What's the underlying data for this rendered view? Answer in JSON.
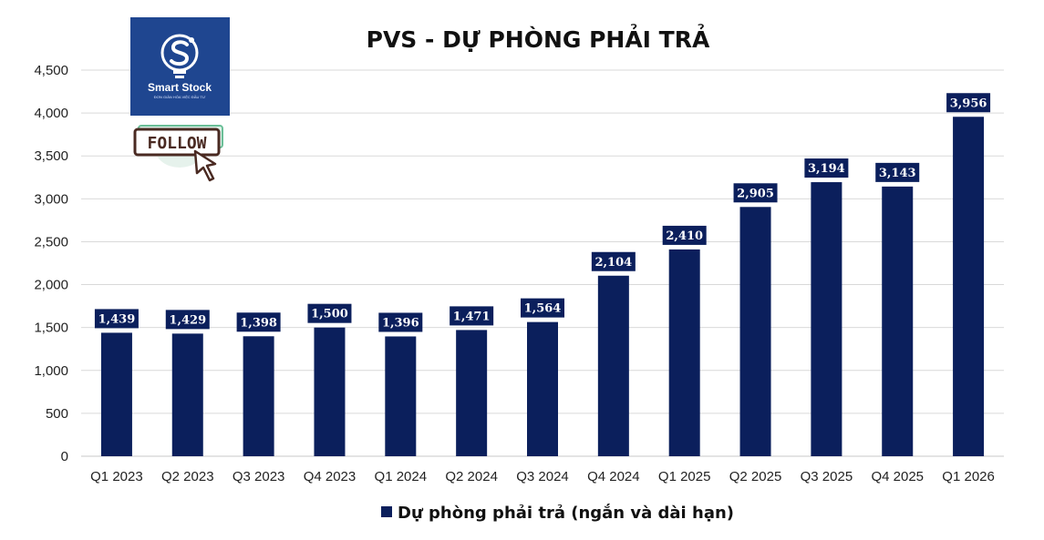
{
  "colors": {
    "bar": "#0b1f5c",
    "label_box": "#0b1f5c",
    "label_text": "#ffffff",
    "grid": "#d9d9d9",
    "brand_bg": "#1f4690",
    "follow_border": "#4a2a22"
  },
  "brand": {
    "name": "Smart Stock",
    "tagline": "ĐƠN GIẢN HÓA VIỆC ĐẦU TƯ",
    "follow_label": "FOLLOW",
    "logo_icon": "lightbulb-s-icon",
    "cursor_icon": "cursor-arrow-icon"
  },
  "chart_data": {
    "type": "bar",
    "title": "PVS - DỰ PHÒNG PHẢI TRẢ",
    "xlabel": "",
    "ylabel": "",
    "ylim": [
      0,
      4500
    ],
    "yticks": [
      0,
      500,
      1000,
      1500,
      2000,
      2500,
      3000,
      3500,
      4000,
      4500
    ],
    "ytick_labels": [
      "0",
      "500",
      "1,000",
      "1,500",
      "2,000",
      "2,500",
      "3,000",
      "3,500",
      "4,000",
      "4,500"
    ],
    "grid": true,
    "legend_position": "bottom-center",
    "categories": [
      "Q1 2023",
      "Q2 2023",
      "Q3 2023",
      "Q4 2023",
      "Q1 2024",
      "Q2 2024",
      "Q3 2024",
      "Q4 2024",
      "Q1 2025",
      "Q2 2025",
      "Q3 2025",
      "Q4 2025",
      "Q1 2026"
    ],
    "series": [
      {
        "name": "Dự phòng phải trả (ngắn và dài hạn)",
        "values": [
          1439,
          1429,
          1398,
          1500,
          1396,
          1471,
          1564,
          2104,
          2410,
          2905,
          3194,
          3143,
          3956
        ],
        "data_labels": [
          "1,439",
          "1,429",
          "1,398",
          "1,500",
          "1,396",
          "1,471",
          "1,564",
          "2,104",
          "2,410",
          "2,905",
          "3,194",
          "3,143",
          "3,956"
        ]
      }
    ]
  }
}
